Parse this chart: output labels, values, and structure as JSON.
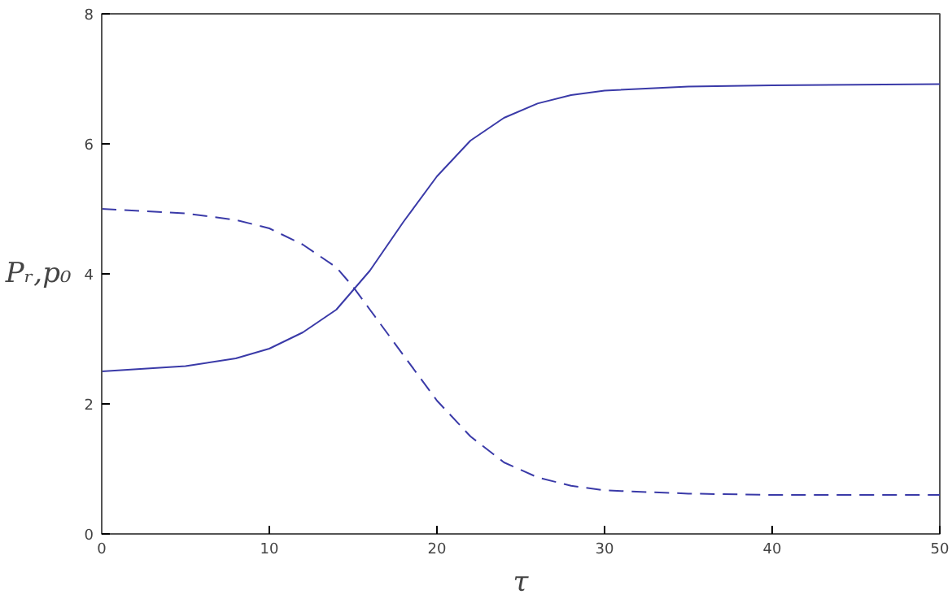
{
  "chart_data": {
    "type": "line",
    "xlabel": "τ",
    "ylabel": "Pᵣ,p₀",
    "x": [
      0,
      5,
      8,
      10,
      12,
      14,
      15,
      16,
      18,
      20,
      22,
      24,
      26,
      28,
      30,
      35,
      40,
      45,
      50
    ],
    "series": [
      {
        "color": "#3a3aa8",
        "line_style": "solid",
        "values": [
          2.5,
          2.58,
          2.7,
          2.85,
          3.1,
          3.45,
          3.75,
          4.05,
          4.8,
          5.5,
          6.05,
          6.4,
          6.62,
          6.75,
          6.82,
          6.88,
          6.9,
          6.91,
          6.92
        ]
      },
      {
        "color": "#3a3aa8",
        "line_style": "dashed",
        "values": [
          5.0,
          4.93,
          4.83,
          4.7,
          4.45,
          4.1,
          3.8,
          3.45,
          2.75,
          2.05,
          1.5,
          1.1,
          0.87,
          0.74,
          0.67,
          0.62,
          0.6,
          0.6,
          0.6
        ]
      }
    ],
    "xlim": [
      0,
      50
    ],
    "ylim": [
      0,
      8
    ],
    "xticks": [
      0,
      10,
      20,
      30,
      40,
      50
    ],
    "yticks": [
      0,
      2,
      4,
      6,
      8
    ],
    "grid": false
  }
}
